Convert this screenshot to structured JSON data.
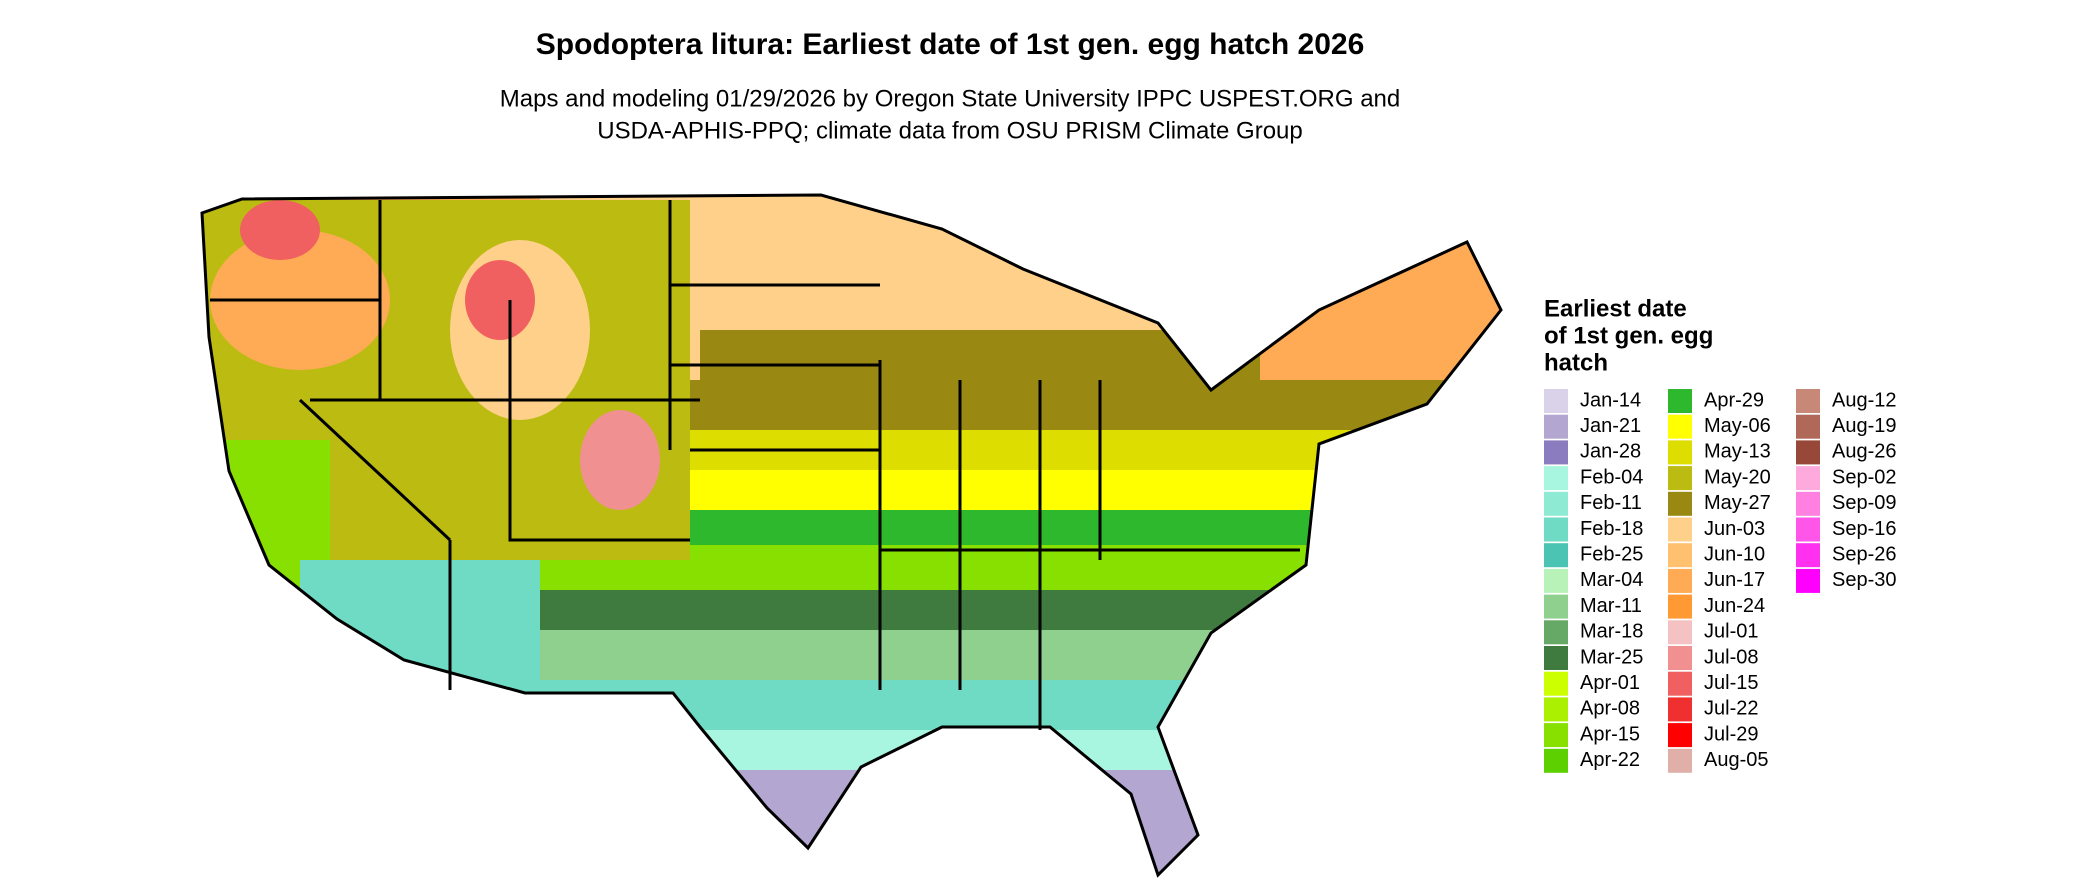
{
  "title": "Spodoptera litura: Earliest date of 1st gen. egg hatch 2026",
  "subtitle": [
    "Maps and modeling 01/29/2026 by Oregon State University IPPC USPEST.ORG and",
    "USDA-APHIS-PPQ; climate data from OSU PRISM Climate Group"
  ],
  "legend": {
    "title": [
      "Earliest date",
      "of 1st gen. egg",
      "hatch"
    ],
    "entries": [
      {
        "label": "Jan-14",
        "color": "#d9d2e9"
      },
      {
        "label": "Jan-21",
        "color": "#b3a6d1"
      },
      {
        "label": "Jan-28",
        "color": "#8b7cbf"
      },
      {
        "label": "Feb-04",
        "color": "#a8f5e0"
      },
      {
        "label": "Feb-11",
        "color": "#8eead2"
      },
      {
        "label": "Feb-18",
        "color": "#6fdbc4"
      },
      {
        "label": "Feb-25",
        "color": "#4cc4b4"
      },
      {
        "label": "Mar-04",
        "color": "#b8f2b8"
      },
      {
        "label": "Mar-11",
        "color": "#8fd08f"
      },
      {
        "label": "Mar-18",
        "color": "#66a866"
      },
      {
        "label": "Mar-25",
        "color": "#3f7a3f"
      },
      {
        "label": "Apr-01",
        "color": "#ccff00"
      },
      {
        "label": "Apr-08",
        "color": "#aaf000"
      },
      {
        "label": "Apr-15",
        "color": "#88e000"
      },
      {
        "label": "Apr-22",
        "color": "#5cd000"
      },
      {
        "label": "Apr-29",
        "color": "#2eb82e"
      },
      {
        "label": "May-06",
        "color": "#ffff00"
      },
      {
        "label": "May-13",
        "color": "#dddd00"
      },
      {
        "label": "May-20",
        "color": "#bbbb11"
      },
      {
        "label": "May-27",
        "color": "#998811"
      },
      {
        "label": "Jun-03",
        "color": "#ffd08a"
      },
      {
        "label": "Jun-10",
        "color": "#ffc070"
      },
      {
        "label": "Jun-17",
        "color": "#ffaa55"
      },
      {
        "label": "Jun-24",
        "color": "#ff9933"
      },
      {
        "label": "Jul-01",
        "color": "#f4c2c2"
      },
      {
        "label": "Jul-08",
        "color": "#f09090"
      },
      {
        "label": "Jul-15",
        "color": "#f06060"
      },
      {
        "label": "Jul-22",
        "color": "#f03030"
      },
      {
        "label": "Jul-29",
        "color": "#ff0000"
      },
      {
        "label": "Aug-05",
        "color": "#e0b0a8"
      },
      {
        "label": "Aug-12",
        "color": "#c88878"
      },
      {
        "label": "Aug-19",
        "color": "#b06858"
      },
      {
        "label": "Aug-26",
        "color": "#984838"
      },
      {
        "label": "Sep-02",
        "color": "#ffaadd"
      },
      {
        "label": "Sep-09",
        "color": "#ff80e0"
      },
      {
        "label": "Sep-16",
        "color": "#ff55e8"
      },
      {
        "label": "Sep-26",
        "color": "#ff30f0"
      },
      {
        "label": "Sep-30",
        "color": "#ff00ff"
      }
    ]
  }
}
